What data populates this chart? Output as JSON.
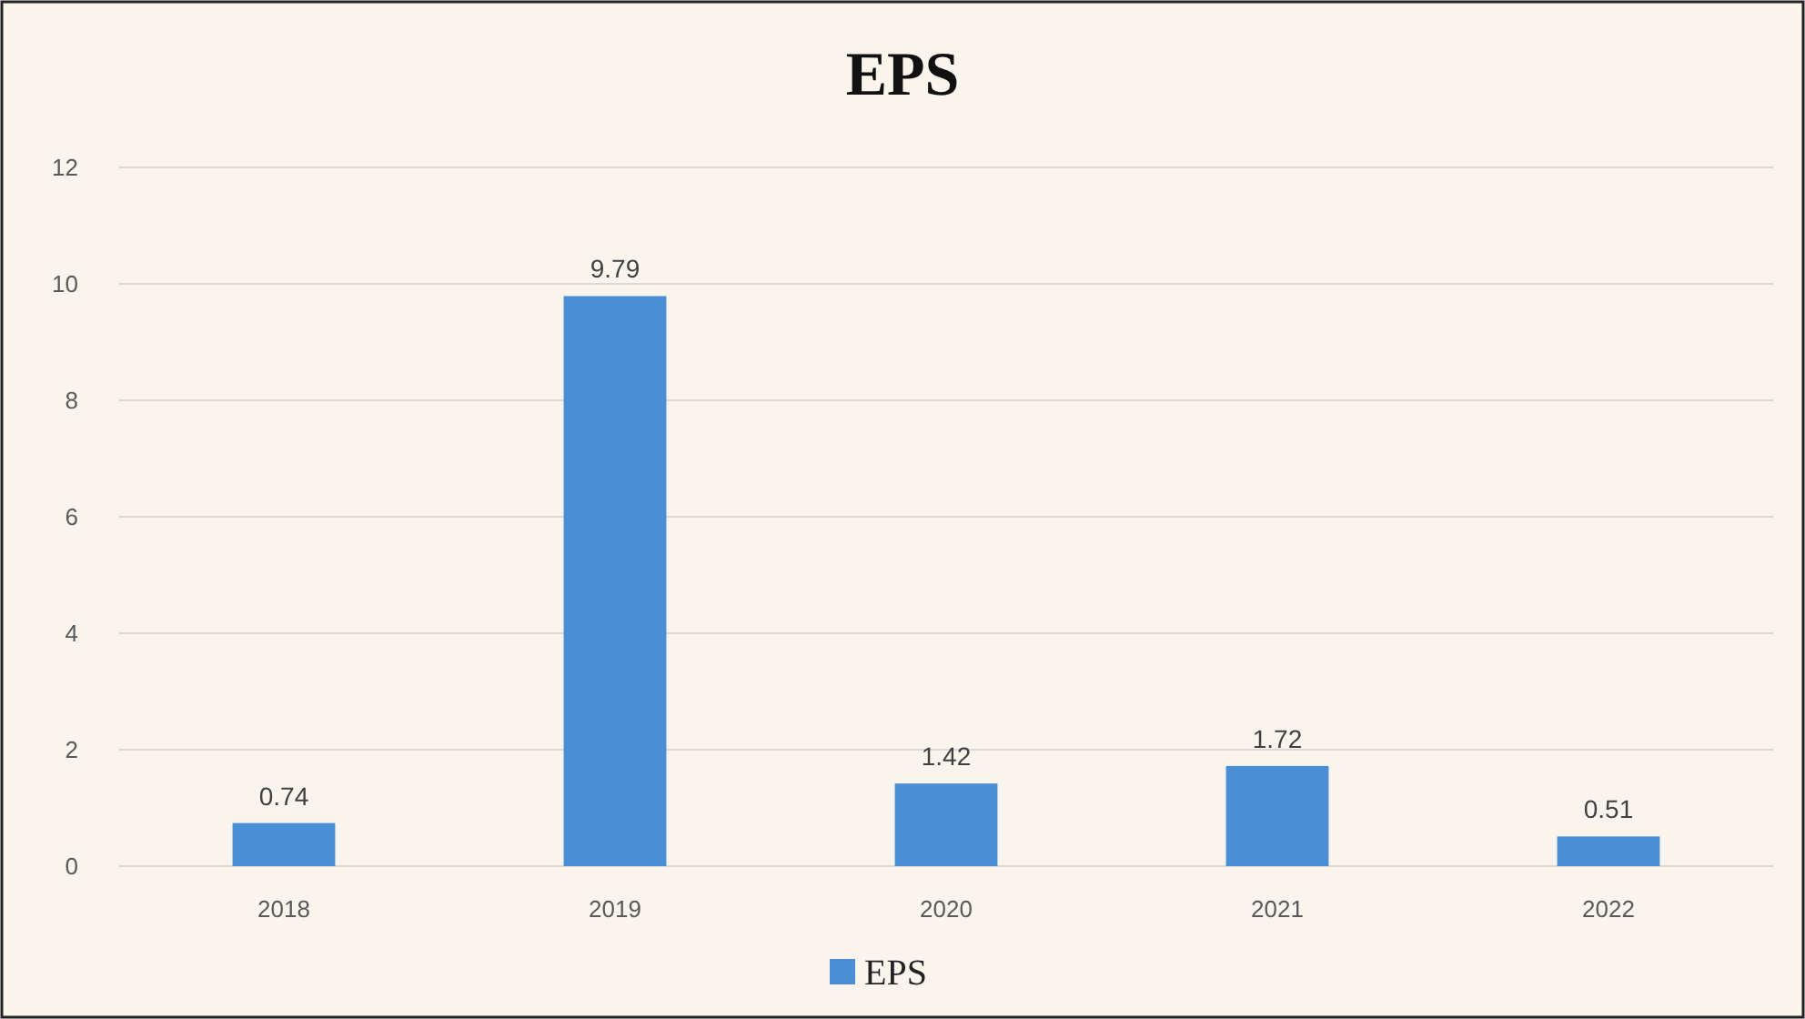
{
  "chart_data": {
    "type": "bar",
    "title": "EPS",
    "categories": [
      "2018",
      "2019",
      "2020",
      "2021",
      "2022"
    ],
    "series": [
      {
        "name": "EPS",
        "color": "#4a8fd6",
        "values": [
          0.74,
          9.79,
          1.42,
          1.72,
          0.51
        ]
      }
    ],
    "ylim": [
      0,
      12
    ],
    "yticks": [
      0,
      2,
      4,
      6,
      8,
      10,
      12
    ],
    "grid": "y",
    "data_labels": true,
    "legend": "bottom"
  }
}
